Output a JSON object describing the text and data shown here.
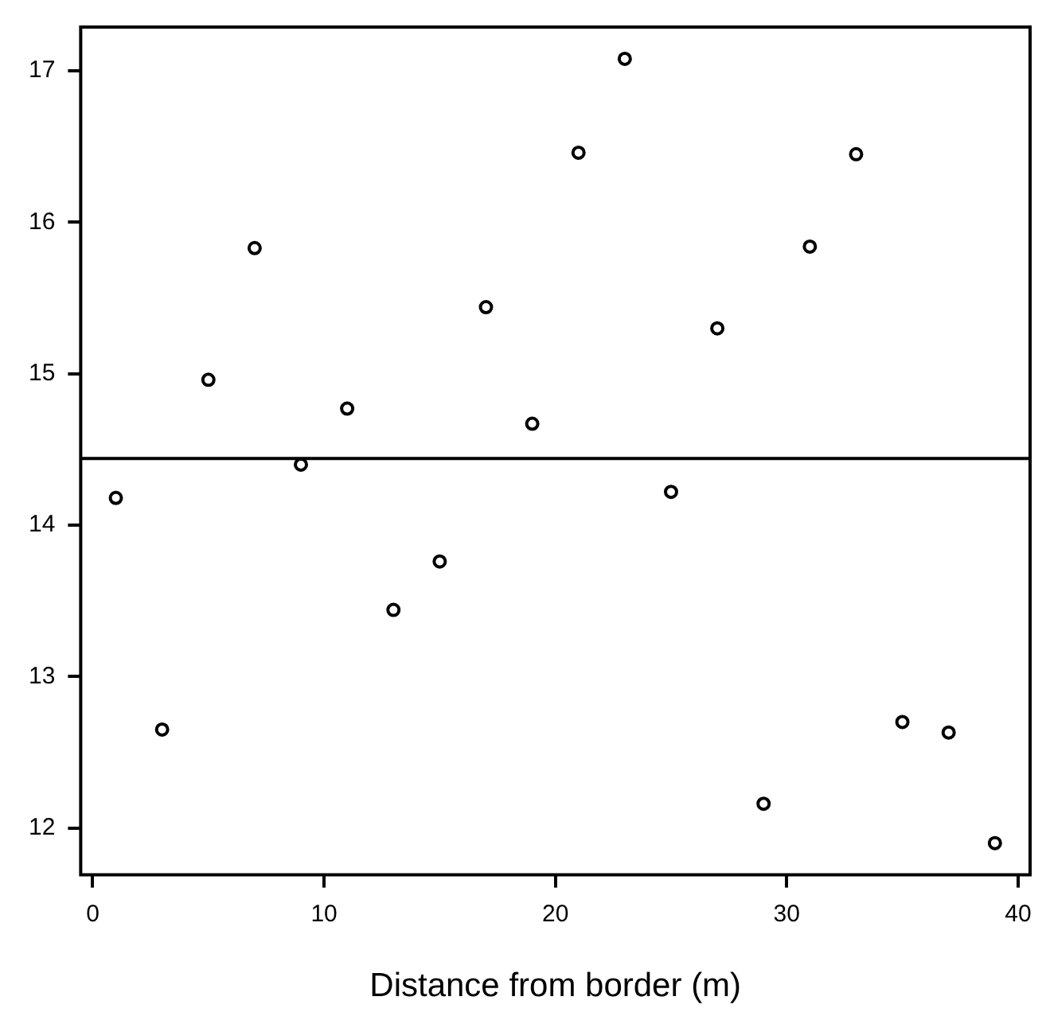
{
  "chart_data": {
    "type": "scatter",
    "xlabel": "Distance from border (m)",
    "x": [
      1,
      3,
      5,
      7,
      9,
      11,
      13,
      15,
      17,
      19,
      21,
      23,
      25,
      27,
      29,
      31,
      33,
      35,
      37,
      39
    ],
    "series": [
      {
        "color": "#000000",
        "values": [
          14.18,
          12.65,
          14.96,
          15.83,
          14.4,
          14.77,
          13.44,
          13.76,
          15.44,
          14.67,
          16.46,
          17.08,
          14.22,
          15.3,
          12.16,
          15.84,
          16.45,
          12.7,
          12.63,
          11.9
        ]
      }
    ],
    "xlim": [
      -0.52,
      40.52
    ],
    "ylim": [
      11.69,
      17.29
    ],
    "xticks": [
      0,
      10,
      20,
      30,
      40
    ],
    "yticks": [
      12,
      13,
      14,
      15,
      16,
      17
    ],
    "ref_lines": [
      {
        "axis": "y",
        "value": 14.44,
        "color": "#000000"
      }
    ],
    "marker": "circle",
    "grid": false,
    "legend": false
  }
}
